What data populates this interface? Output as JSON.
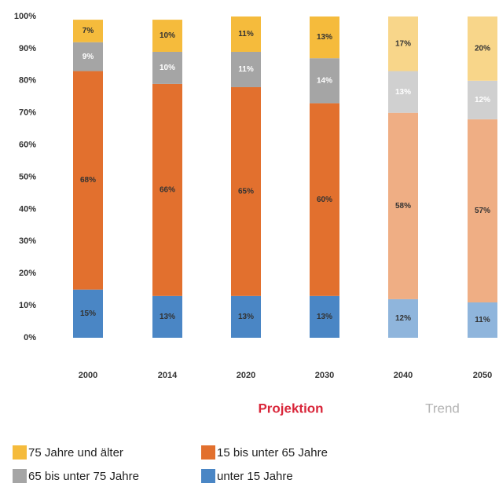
{
  "chart_data": {
    "type": "stacked_bar",
    "categories": [
      "2000",
      "2014",
      "2020",
      "2030",
      "2040",
      "2050"
    ],
    "series": [
      {
        "name": "unter 15 Jahre",
        "colors": [
          "#4a86c5",
          "#4a86c5",
          "#4a86c5",
          "#4a86c5",
          "#8fb5dc",
          "#8fb5dc"
        ],
        "values": [
          15,
          13,
          13,
          13,
          12,
          11
        ],
        "value_labels": [
          "15%",
          "13%",
          "13%",
          "13%",
          "12%",
          "11%"
        ]
      },
      {
        "name": "15 bis unter 65 Jahre",
        "colors": [
          "#e2702e",
          "#e2702e",
          "#e2702e",
          "#e2702e",
          "#efae84",
          "#efae84"
        ],
        "values": [
          68,
          66,
          65,
          60,
          58,
          57
        ],
        "value_labels": [
          "68%",
          "66%",
          "65%",
          "60%",
          "58%",
          "57%"
        ]
      },
      {
        "name": "65 bis unter 75 Jahre",
        "colors": [
          "#a5a5a5",
          "#a5a5a5",
          "#a5a5a5",
          "#a5a5a5",
          "#d0d0d0",
          "#d0d0d0"
        ],
        "values": [
          9,
          10,
          11,
          14,
          13,
          12
        ],
        "value_labels": [
          "9%",
          "10%",
          "11%",
          "14%",
          "13%",
          "12%"
        ]
      },
      {
        "name": "75 Jahre und älter",
        "colors": [
          "#f5bb3c",
          "#f5bb3c",
          "#f5bb3c",
          "#f5bb3c",
          "#f8d68a",
          "#f8d68a"
        ],
        "values": [
          7,
          10,
          11,
          13,
          17,
          20
        ],
        "value_labels": [
          "7%",
          "10%",
          "11%",
          "13%",
          "17%",
          "20%"
        ]
      }
    ],
    "ylim": [
      0,
      100
    ],
    "yticks": [
      {
        "value": 0,
        "label": "0%"
      },
      {
        "value": 10,
        "label": "10%"
      },
      {
        "value": 20,
        "label": "20%"
      },
      {
        "value": 30,
        "label": "30%"
      },
      {
        "value": 40,
        "label": "40%"
      },
      {
        "value": 50,
        "label": "50%"
      },
      {
        "value": 60,
        "label": "60%"
      },
      {
        "value": 70,
        "label": "70%"
      },
      {
        "value": 80,
        "label": "80%"
      },
      {
        "value": 90,
        "label": "90%"
      },
      {
        "value": 100,
        "label": "100%"
      }
    ],
    "annotations": [
      {
        "text": "Projektion",
        "color": "#d9263a"
      },
      {
        "text": "Trend",
        "color": "#b3b3b3"
      }
    ]
  }
}
